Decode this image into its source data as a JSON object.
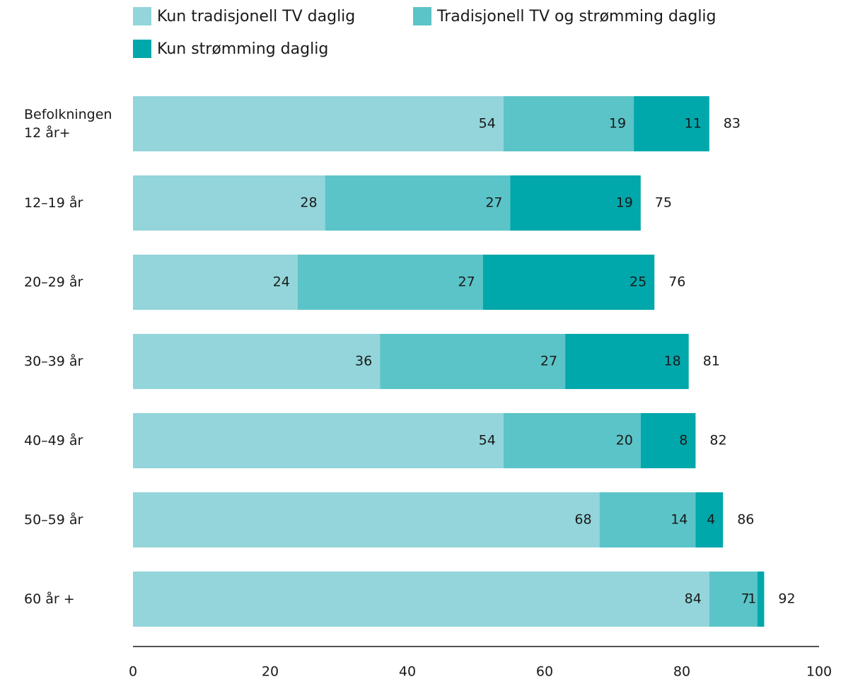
{
  "chart_data": {
    "type": "stacked-barh",
    "categories": [
      "Befolkningen 12 år+",
      "12–19 år",
      "20–29 år",
      "30–39 år",
      "40–49 år",
      "50–59 år",
      "60 år +"
    ],
    "series": [
      {
        "name": "Kun tradisjonell TV daglig",
        "color": "#93d5da",
        "label_color": "#1a1a1a",
        "values": [
          54,
          28,
          24,
          36,
          54,
          68,
          84
        ]
      },
      {
        "name": "Tradisjonell TV og strømming daglig",
        "color": "#5bc4c8",
        "label_color": "#1a1a1a",
        "values": [
          19,
          27,
          27,
          27,
          20,
          14,
          7
        ]
      },
      {
        "name": "Kun strømming daglig",
        "color": "#00a7ab",
        "label_color": "#ffffff",
        "values": [
          11,
          19,
          25,
          18,
          8,
          4,
          1
        ]
      }
    ],
    "totals": [
      83,
      75,
      76,
      81,
      82,
      86,
      92
    ],
    "xlim": [
      0,
      100
    ],
    "xticks": [
      0,
      20,
      40,
      60,
      80,
      100
    ],
    "grid": false
  }
}
